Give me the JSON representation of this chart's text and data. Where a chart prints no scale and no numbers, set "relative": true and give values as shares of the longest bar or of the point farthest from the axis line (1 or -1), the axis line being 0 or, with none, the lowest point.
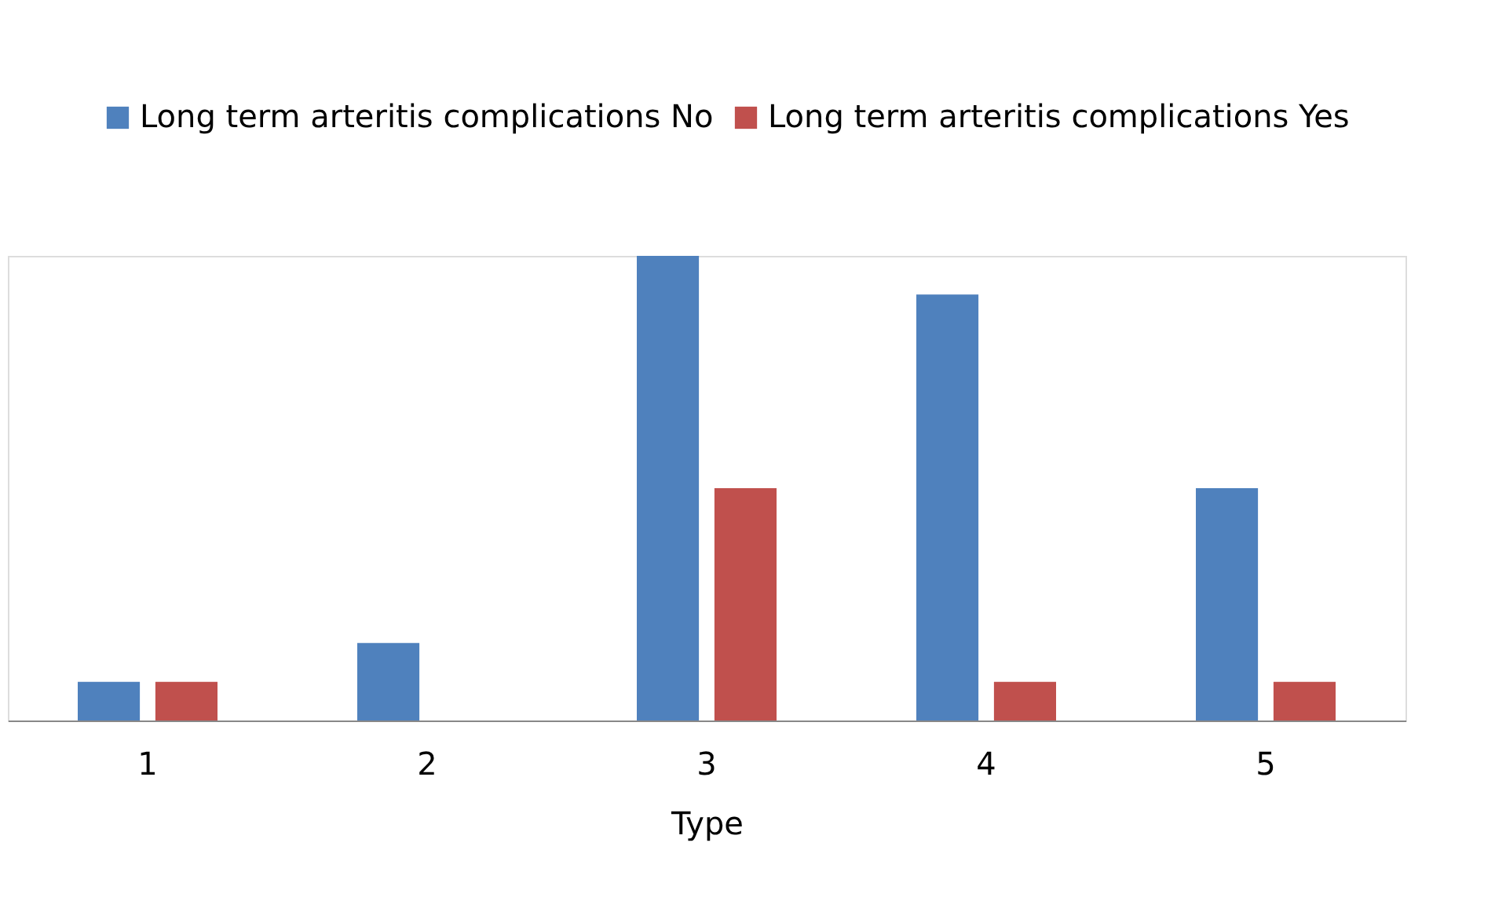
{
  "chart_data": {
    "type": "bar",
    "xlabel": "Type",
    "categories": [
      "1",
      "2",
      "3",
      "4",
      "5"
    ],
    "relative": true,
    "legend": "top",
    "series": [
      {
        "name": "Long term arteritis complications No",
        "color": "#4f81bd",
        "values": [
          0.083,
          0.167,
          1,
          0.917,
          0.5
        ]
      },
      {
        "name": "Long term arteritis complications Yes",
        "color": "#c0504d",
        "values": [
          0.083,
          0,
          0.5,
          0.083,
          0.083
        ]
      }
    ]
  }
}
